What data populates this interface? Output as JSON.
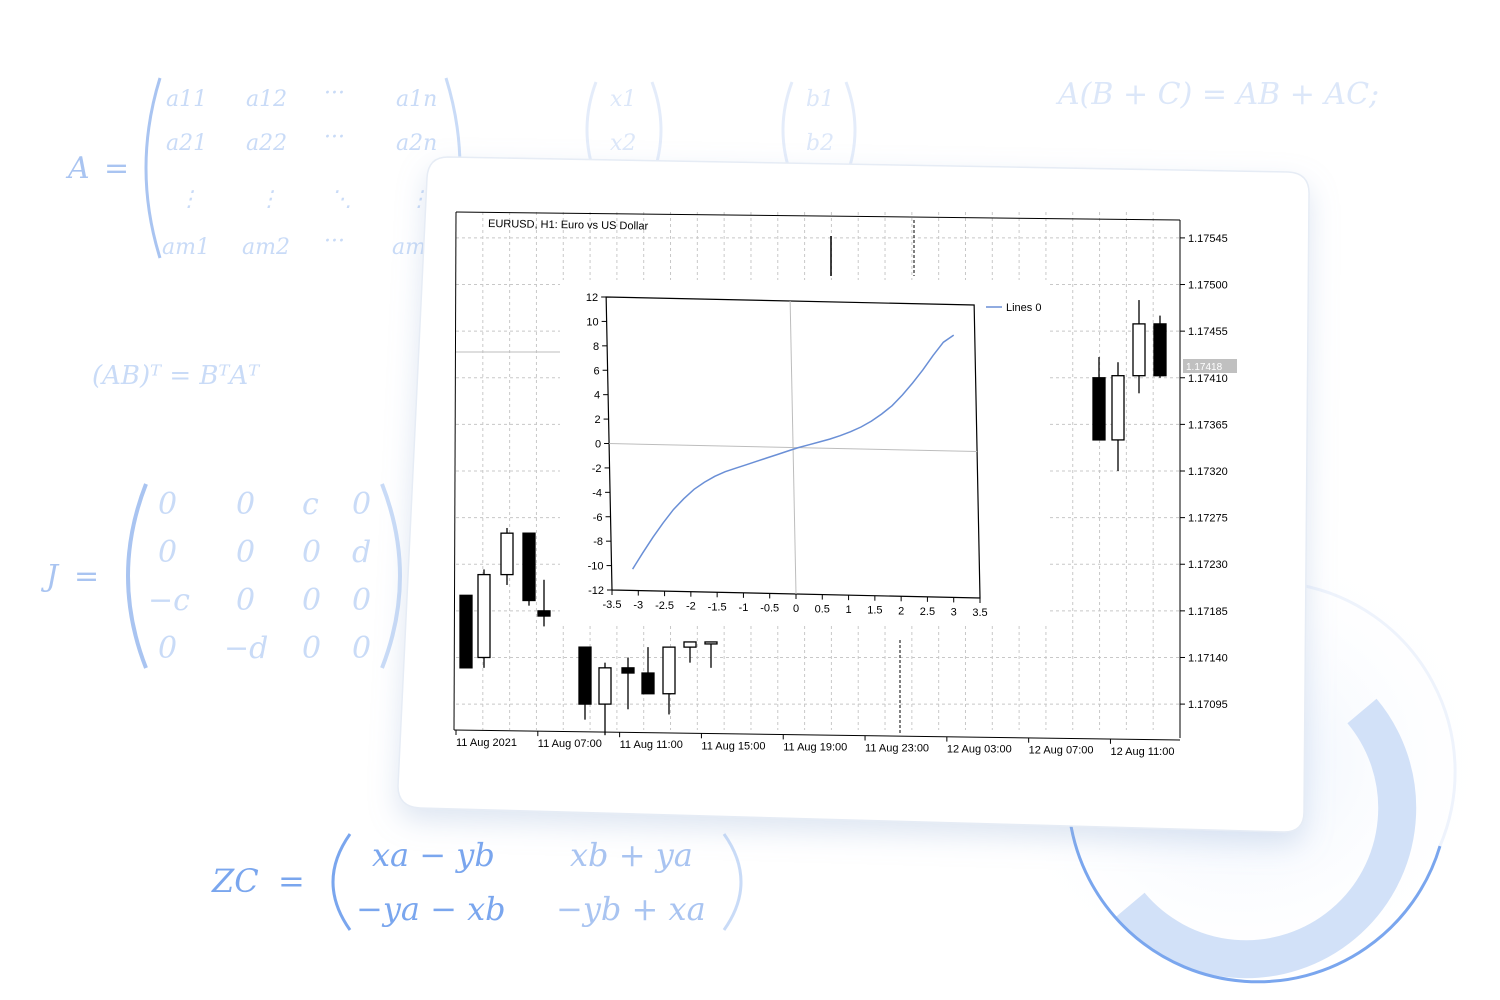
{
  "formulas": {
    "matrix_a": {
      "name": "A",
      "rows": [
        [
          "a11",
          "a12",
          "···",
          "a1n"
        ],
        [
          "a21",
          "a22",
          "···",
          "a2n"
        ],
        [
          "⋮",
          "⋮",
          "⋱",
          "⋮"
        ],
        [
          "am1",
          "am2",
          "···",
          "amn"
        ]
      ]
    },
    "vector_x": [
      "x1",
      "x2"
    ],
    "vector_b": [
      "b1",
      "b2"
    ],
    "distributive": "A(B + C) = AB + AC;",
    "transpose": "(AB)ᵀ = BᵀAᵀ",
    "matrix_j": {
      "name": "J",
      "rows": [
        [
          "0",
          "0",
          "c",
          "0"
        ],
        [
          "0",
          "0",
          "0",
          "d"
        ],
        [
          "−c",
          "0",
          "0",
          "0"
        ],
        [
          "0",
          "−d",
          "0",
          "0"
        ]
      ]
    },
    "matrix_zc": {
      "name": "ZC",
      "rows": [
        [
          "xa − yb",
          "xb + ya"
        ],
        [
          "−ya − xb",
          "−yb + xa"
        ]
      ]
    }
  },
  "colors": {
    "accent": "#5b8def",
    "formula_light": "#c9dbf7",
    "formula_mid": "#a9c4f1",
    "series_line": "#6a8fd6",
    "price_tag_bg": "#c0c0c0"
  },
  "chart_data": [
    {
      "type": "candlestick",
      "title": "EURUSD, H1:  Euro vs US Dollar",
      "y_tick_labels": [
        "1.17545",
        "1.17500",
        "1.17455",
        "1.17410",
        "1.17365",
        "1.17320",
        "1.17275",
        "1.17230",
        "1.17185",
        "1.17140",
        "1.17095"
      ],
      "x_tick_labels": [
        "11 Aug 2021",
        "11 Aug 07:00",
        "11 Aug 11:00",
        "11 Aug 15:00",
        "11 Aug 19:00",
        "11 Aug 23:00",
        "12 Aug 03:00",
        "12 Aug 07:00",
        "12 Aug 11:00"
      ],
      "ylim": [
        1.1707,
        1.1757
      ],
      "current_price": "1.17418",
      "candles": [
        {
          "o": 1.172,
          "h": 1.172,
          "l": 1.1713,
          "c": 1.1713
        },
        {
          "o": 1.1714,
          "h": 1.17225,
          "l": 1.1713,
          "c": 1.1722
        },
        {
          "o": 1.1722,
          "h": 1.17265,
          "l": 1.1721,
          "c": 1.1726
        },
        {
          "o": 1.1726,
          "h": 1.1726,
          "l": 1.1719,
          "c": 1.17195
        },
        {
          "o": 1.17185,
          "h": 1.17215,
          "l": 1.1717,
          "c": 1.1718
        },
        {
          "o": 1.1715,
          "h": 1.1715,
          "l": 1.1708,
          "c": 1.17095
        },
        {
          "o": 1.17095,
          "h": 1.17135,
          "l": 1.17065,
          "c": 1.1713
        },
        {
          "o": 1.1713,
          "h": 1.1714,
          "l": 1.1709,
          "c": 1.17125
        },
        {
          "o": 1.17125,
          "h": 1.1715,
          "l": 1.17105,
          "c": 1.17105
        },
        {
          "o": 1.17105,
          "h": 1.1715,
          "l": 1.17085,
          "c": 1.1715
        },
        {
          "o": 1.1715,
          "h": 1.17155,
          "l": 1.17135,
          "c": 1.17155
        },
        {
          "o": 1.17155,
          "h": 1.17155,
          "l": 1.1713,
          "c": 1.17155
        },
        {
          "o": 1.1741,
          "h": 1.1743,
          "l": 1.1735,
          "c": 1.1735
        },
        {
          "o": 1.1735,
          "h": 1.17425,
          "l": 1.1732,
          "c": 1.17412
        },
        {
          "o": 1.17412,
          "h": 1.17485,
          "l": 1.17395,
          "c": 1.17462
        },
        {
          "o": 1.17462,
          "h": 1.1747,
          "l": 1.1741,
          "c": 1.17412
        }
      ]
    },
    {
      "type": "line",
      "legend": "Lines 0",
      "xlim": [
        -3.5,
        3.5
      ],
      "ylim": [
        -12,
        12
      ],
      "x_tick_labels": [
        "-3.5",
        "-3",
        "-2.5",
        "-2",
        "-1.5",
        "-1",
        "-0.5",
        "0",
        "0.5",
        "1",
        "1.5",
        "2",
        "2.5",
        "3",
        "3.5"
      ],
      "y_tick_labels": [
        "12",
        "10",
        "8",
        "6",
        "4",
        "2",
        "0",
        "-2",
        "-4",
        "-6",
        "-8",
        "-10",
        "-12"
      ],
      "series": [
        {
          "name": "Lines 0",
          "x": [
            -3.1,
            -2.9,
            -2.7,
            -2.5,
            -2.3,
            -2.1,
            -1.9,
            -1.7,
            -1.5,
            -1.3,
            -1.1,
            -0.9,
            -0.7,
            -0.5,
            -0.3,
            -0.1,
            0.1,
            0.3,
            0.5,
            0.7,
            0.9,
            1.1,
            1.3,
            1.5,
            1.7,
            1.9,
            2.1,
            2.3,
            2.5,
            2.7,
            2.9,
            3.1
          ],
          "y": [
            -10.25,
            -8.9,
            -7.6,
            -6.4,
            -5.3,
            -4.4,
            -3.6,
            -3.0,
            -2.5,
            -2.1,
            -1.8,
            -1.5,
            -1.2,
            -0.9,
            -0.6,
            -0.3,
            0.0,
            0.25,
            0.5,
            0.75,
            1.05,
            1.4,
            1.8,
            2.3,
            2.9,
            3.6,
            4.5,
            5.5,
            6.6,
            7.8,
            8.9,
            9.5
          ]
        }
      ]
    }
  ]
}
